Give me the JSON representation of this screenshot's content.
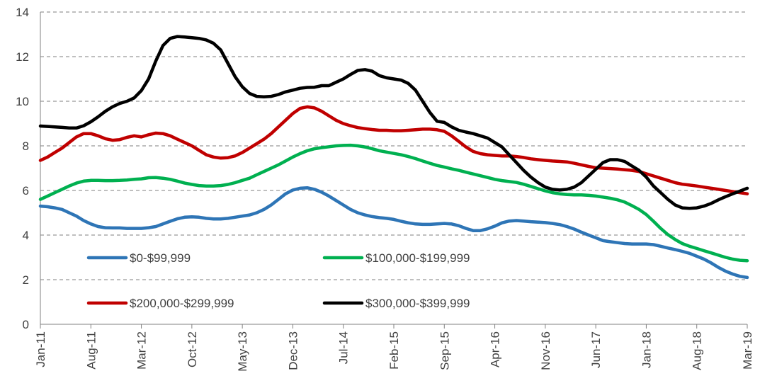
{
  "chart_data": {
    "type": "line",
    "categories": [
      "Jan-11",
      null,
      null,
      null,
      null,
      null,
      null,
      "Aug-11",
      null,
      null,
      null,
      null,
      null,
      null,
      "Mar-12",
      null,
      null,
      null,
      null,
      null,
      null,
      "Oct-12",
      null,
      null,
      null,
      null,
      null,
      null,
      "May-13",
      null,
      null,
      null,
      null,
      null,
      null,
      "Dec-13",
      null,
      null,
      null,
      null,
      null,
      null,
      "Jul-14",
      null,
      null,
      null,
      null,
      null,
      null,
      "Feb-15",
      null,
      null,
      null,
      null,
      null,
      null,
      "Sep-15",
      null,
      null,
      null,
      null,
      null,
      null,
      "Apr-16",
      null,
      null,
      null,
      null,
      null,
      null,
      "Nov-16",
      null,
      null,
      null,
      null,
      null,
      null,
      "Jun-17",
      null,
      null,
      null,
      null,
      null,
      null,
      "Jan-18",
      null,
      null,
      null,
      null,
      null,
      null,
      "Aug-18",
      null,
      null,
      null,
      null,
      null,
      null,
      "Mar-19"
    ],
    "series": [
      {
        "name": "$0-$99,999",
        "color": "#2e75b6",
        "values": [
          5.3,
          5.27,
          5.22,
          5.15,
          5.0,
          4.85,
          4.65,
          4.5,
          4.38,
          4.33,
          4.32,
          4.32,
          4.3,
          4.3,
          4.3,
          4.33,
          4.38,
          4.5,
          4.62,
          4.73,
          4.8,
          4.82,
          4.8,
          4.75,
          4.72,
          4.72,
          4.75,
          4.8,
          4.85,
          4.9,
          5.0,
          5.15,
          5.35,
          5.6,
          5.85,
          6.02,
          6.1,
          6.12,
          6.05,
          5.92,
          5.75,
          5.55,
          5.35,
          5.15,
          5.0,
          4.9,
          4.83,
          4.78,
          4.75,
          4.7,
          4.62,
          4.55,
          4.5,
          4.48,
          4.48,
          4.5,
          4.52,
          4.5,
          4.42,
          4.3,
          4.2,
          4.2,
          4.28,
          4.4,
          4.55,
          4.63,
          4.65,
          4.63,
          4.6,
          4.58,
          4.56,
          4.52,
          4.47,
          4.38,
          4.27,
          4.13,
          4.0,
          3.88,
          3.75,
          3.7,
          3.66,
          3.62,
          3.6,
          3.6,
          3.6,
          3.57,
          3.5,
          3.42,
          3.35,
          3.27,
          3.18,
          3.05,
          2.92,
          2.75,
          2.55,
          2.38,
          2.25,
          2.15,
          2.1
        ]
      },
      {
        "name": "$100,000-$199,999",
        "color": "#00b050",
        "values": [
          5.6,
          5.75,
          5.9,
          6.05,
          6.2,
          6.33,
          6.42,
          6.45,
          6.45,
          6.44,
          6.44,
          6.45,
          6.47,
          6.5,
          6.52,
          6.57,
          6.58,
          6.55,
          6.5,
          6.42,
          6.33,
          6.27,
          6.22,
          6.2,
          6.2,
          6.22,
          6.27,
          6.35,
          6.45,
          6.55,
          6.7,
          6.85,
          7.0,
          7.15,
          7.32,
          7.5,
          7.65,
          7.78,
          7.87,
          7.92,
          7.96,
          8.0,
          8.02,
          8.03,
          8.0,
          7.95,
          7.87,
          7.78,
          7.72,
          7.66,
          7.6,
          7.52,
          7.43,
          7.32,
          7.22,
          7.12,
          7.05,
          6.97,
          6.9,
          6.82,
          6.74,
          6.66,
          6.58,
          6.5,
          6.44,
          6.4,
          6.36,
          6.28,
          6.18,
          6.08,
          5.98,
          5.9,
          5.85,
          5.82,
          5.8,
          5.8,
          5.78,
          5.75,
          5.7,
          5.65,
          5.58,
          5.48,
          5.32,
          5.15,
          4.92,
          4.62,
          4.3,
          4.02,
          3.8,
          3.62,
          3.5,
          3.4,
          3.3,
          3.2,
          3.1,
          3.0,
          2.92,
          2.87,
          2.85
        ]
      },
      {
        "name": "$200,000-$299,999",
        "color": "#c00000",
        "values": [
          7.35,
          7.5,
          7.7,
          7.9,
          8.15,
          8.4,
          8.55,
          8.55,
          8.45,
          8.32,
          8.25,
          8.28,
          8.38,
          8.45,
          8.4,
          8.5,
          8.57,
          8.55,
          8.45,
          8.3,
          8.15,
          8.0,
          7.8,
          7.6,
          7.5,
          7.45,
          7.47,
          7.55,
          7.7,
          7.9,
          8.1,
          8.3,
          8.55,
          8.85,
          9.15,
          9.45,
          9.68,
          9.75,
          9.7,
          9.55,
          9.35,
          9.15,
          9.0,
          8.9,
          8.82,
          8.77,
          8.73,
          8.7,
          8.7,
          8.68,
          8.68,
          8.7,
          8.72,
          8.75,
          8.75,
          8.72,
          8.65,
          8.45,
          8.2,
          7.95,
          7.75,
          7.65,
          7.6,
          7.57,
          7.55,
          7.55,
          7.52,
          7.48,
          7.42,
          7.38,
          7.35,
          7.32,
          7.3,
          7.28,
          7.22,
          7.15,
          7.08,
          7.02,
          7.0,
          6.98,
          6.96,
          6.93,
          6.9,
          6.85,
          6.75,
          6.65,
          6.55,
          6.45,
          6.35,
          6.28,
          6.24,
          6.2,
          6.15,
          6.1,
          6.05,
          6.0,
          5.95,
          5.9,
          5.85
        ]
      },
      {
        "name": "$300,000-$399,999",
        "color": "#000000",
        "values": [
          8.89,
          8.87,
          8.85,
          8.83,
          8.8,
          8.8,
          8.9,
          9.08,
          9.3,
          9.55,
          9.75,
          9.9,
          10.0,
          10.15,
          10.48,
          11.0,
          11.8,
          12.5,
          12.82,
          12.9,
          12.88,
          12.85,
          12.82,
          12.75,
          12.6,
          12.3,
          11.7,
          11.1,
          10.65,
          10.35,
          10.22,
          10.2,
          10.22,
          10.3,
          10.42,
          10.5,
          10.58,
          10.62,
          10.63,
          10.7,
          10.7,
          10.85,
          11.0,
          11.2,
          11.38,
          11.42,
          11.35,
          11.15,
          11.05,
          11.0,
          10.95,
          10.8,
          10.5,
          10.0,
          9.5,
          9.1,
          9.05,
          8.85,
          8.7,
          8.62,
          8.55,
          8.45,
          8.35,
          8.15,
          7.95,
          7.6,
          7.25,
          6.9,
          6.6,
          6.35,
          6.15,
          6.05,
          6.02,
          6.05,
          6.15,
          6.35,
          6.65,
          6.95,
          7.25,
          7.38,
          7.38,
          7.3,
          7.1,
          6.9,
          6.6,
          6.2,
          5.9,
          5.6,
          5.35,
          5.22,
          5.2,
          5.22,
          5.3,
          5.42,
          5.58,
          5.72,
          5.85,
          5.97,
          6.1
        ]
      }
    ],
    "ylim": [
      0,
      14
    ],
    "yticks": [
      0,
      2,
      4,
      6,
      8,
      10,
      12,
      14
    ],
    "grid": true,
    "legend": "inside-lower-left"
  }
}
